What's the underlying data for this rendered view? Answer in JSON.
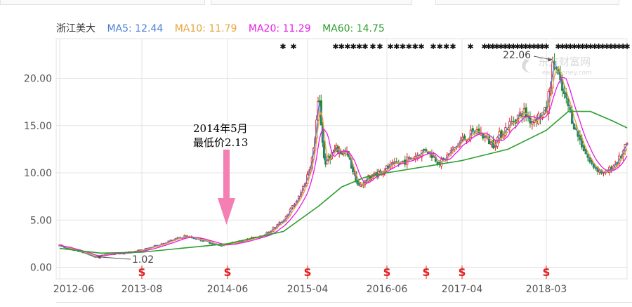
{
  "stock_name": "浙江美大",
  "legend": [
    {
      "label": "MA5: 12.44",
      "color": "#4a7ed9"
    },
    {
      "label": "MA10: 11.79",
      "color": "#e8a33a"
    },
    {
      "label": "MA20: 11.29",
      "color": "#e619e6"
    },
    {
      "label": "MA60: 14.75",
      "color": "#2e9e2e"
    }
  ],
  "annotation": {
    "line1": "2014年5月",
    "line2": "最低价2.13",
    "arrow_color": "#f37fb3"
  },
  "watermark": {
    "main": "东方财富网",
    "sub": "eastmoney.com"
  },
  "colors": {
    "up": "#e02020",
    "down": "#1e8a1e",
    "grid": "#e3e3e3",
    "signal": "#e02020"
  },
  "chart_data": {
    "type": "candlestick",
    "title": "",
    "x_tick_labels": [
      "2012-06",
      "2013-08",
      "2014-06",
      "2015-04",
      "2016-06",
      "2017-04",
      "2018-03"
    ],
    "y_ticks": [
      0,
      5,
      10,
      15,
      20
    ],
    "y_tick_labels": [
      "0.00",
      "5.00",
      "10.00",
      "15.00",
      "20.00"
    ],
    "ylim": [
      -1.0,
      23.5
    ],
    "grid": true,
    "min_label": "1.02",
    "max_label": "22.06",
    "signal_marker": "S",
    "signal_dates": [
      "2013-08",
      "2014-06",
      "2015-04",
      "2016-06",
      "2016-11",
      "2017-04",
      "2018-03"
    ],
    "price_path": [
      [
        "2012-06",
        2.3
      ],
      [
        "2012-08",
        1.9
      ],
      [
        "2012-10",
        1.6
      ],
      [
        "2012-12",
        1.1
      ],
      [
        "2013-02",
        1.4
      ],
      [
        "2013-05",
        1.5
      ],
      [
        "2013-08",
        1.8
      ],
      [
        "2013-11",
        2.7
      ],
      [
        "2014-01",
        3.3
      ],
      [
        "2014-03",
        2.9
      ],
      [
        "2014-05",
        2.3
      ],
      [
        "2014-08",
        2.8
      ],
      [
        "2014-11",
        3.6
      ],
      [
        "2015-01",
        5.0
      ],
      [
        "2015-03",
        7.5
      ],
      [
        "2015-05",
        12.0
      ],
      [
        "2015-06",
        18.0
      ],
      [
        "2015-07",
        11.0
      ],
      [
        "2015-09",
        12.5
      ],
      [
        "2015-11",
        12.0
      ],
      [
        "2016-01",
        8.5
      ],
      [
        "2016-03",
        9.5
      ],
      [
        "2016-06",
        10.5
      ],
      [
        "2016-09",
        11.5
      ],
      [
        "2016-11",
        12.5
      ],
      [
        "2017-01",
        11.0
      ],
      [
        "2017-04",
        13.5
      ],
      [
        "2017-06",
        14.5
      ],
      [
        "2017-08",
        13.0
      ],
      [
        "2017-10",
        15.0
      ],
      [
        "2017-12",
        16.5
      ],
      [
        "2018-01",
        15.5
      ],
      [
        "2018-03",
        16.5
      ],
      [
        "2018-04",
        22.06
      ],
      [
        "2018-05",
        19.0
      ],
      [
        "2018-06",
        17.0
      ],
      [
        "2018-07",
        14.5
      ],
      [
        "2018-09",
        11.0
      ],
      [
        "2018-11",
        9.8
      ],
      [
        "2019-01",
        11.5
      ],
      [
        "2019-02",
        13.0
      ]
    ],
    "ma60_path": [
      [
        "2012-06",
        2.0
      ],
      [
        "2013-01",
        1.5
      ],
      [
        "2013-08",
        1.6
      ],
      [
        "2014-06",
        2.5
      ],
      [
        "2015-01",
        3.8
      ],
      [
        "2015-06",
        6.5
      ],
      [
        "2015-10",
        8.5
      ],
      [
        "2016-02",
        9.5
      ],
      [
        "2016-06",
        10.0
      ],
      [
        "2016-12",
        10.8
      ],
      [
        "2017-04",
        11.3
      ],
      [
        "2017-10",
        12.5
      ],
      [
        "2018-03",
        14.5
      ],
      [
        "2018-06",
        16.5
      ],
      [
        "2018-09",
        16.5
      ],
      [
        "2018-12",
        15.5
      ],
      [
        "2019-02",
        14.75
      ]
    ]
  }
}
